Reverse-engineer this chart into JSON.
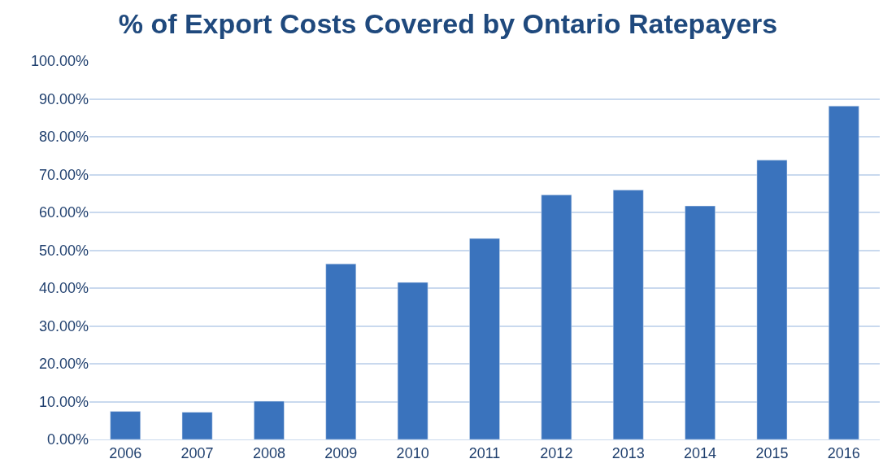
{
  "chart_data": {
    "type": "bar",
    "title": "% of Export Costs Covered by Ontario Ratepayers",
    "categories": [
      "2006",
      "2007",
      "2008",
      "2009",
      "2010",
      "2011",
      "2012",
      "2013",
      "2014",
      "2015",
      "2016"
    ],
    "values": [
      7.4,
      7.2,
      10.1,
      46.4,
      41.5,
      53.1,
      64.6,
      65.9,
      61.7,
      73.8,
      88.1
    ],
    "color": "#3a73bd",
    "ylim": [
      0,
      100
    ],
    "yticks": [
      {
        "value": 0,
        "label": "0.00%"
      },
      {
        "value": 10,
        "label": "10.00%"
      },
      {
        "value": 20,
        "label": "20.00%"
      },
      {
        "value": 30,
        "label": "30.00%"
      },
      {
        "value": 40,
        "label": "40.00%"
      },
      {
        "value": 50,
        "label": "50.00%"
      },
      {
        "value": 60,
        "label": "60.00%"
      },
      {
        "value": 70,
        "label": "70.00%"
      },
      {
        "value": 80,
        "label": "80.00%"
      },
      {
        "value": 90,
        "label": "90.00%"
      },
      {
        "value": 100,
        "label": "100.00%"
      }
    ],
    "grid": "y"
  }
}
